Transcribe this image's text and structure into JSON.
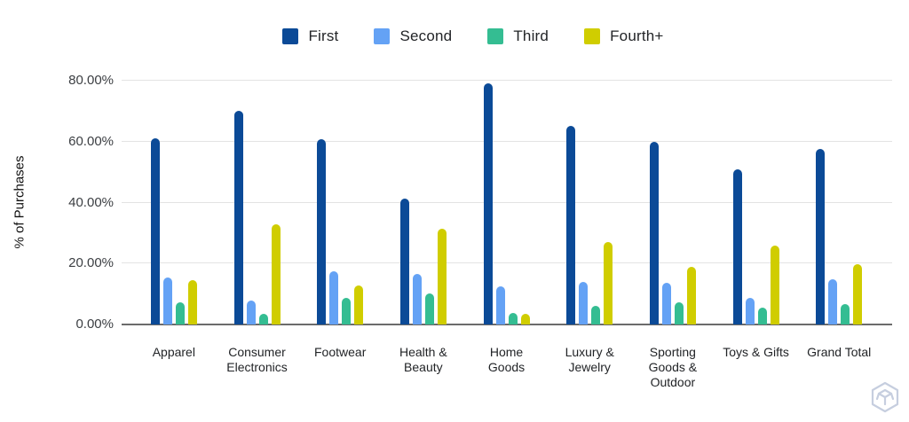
{
  "chart_data": {
    "type": "bar",
    "title": "",
    "xlabel": "",
    "ylabel": "% of Purchases",
    "ylim": [
      0,
      80
    ],
    "grid": true,
    "legend_position": "top-center",
    "y_ticks": [
      "0.00%",
      "20.00%",
      "40.00%",
      "60.00%",
      "80.00%"
    ],
    "categories": [
      "Apparel",
      "Consumer Electronics",
      "Footwear",
      "Health & Beauty",
      "Home Goods",
      "Luxury & Jewelry",
      "Sporting Goods & Outdoor",
      "Toys & Gifts",
      "Grand Total"
    ],
    "series": [
      {
        "name": "First",
        "color": "#0b4a97",
        "values": [
          61.0,
          70.0,
          60.7,
          41.4,
          79.0,
          65.3,
          60.0,
          50.8,
          57.7
        ]
      },
      {
        "name": "Second",
        "color": "#64a2f5",
        "values": [
          15.5,
          8.0,
          17.4,
          16.5,
          12.6,
          14.0,
          13.7,
          8.8,
          14.9
        ]
      },
      {
        "name": "Third",
        "color": "#34bd92",
        "values": [
          7.2,
          3.6,
          8.7,
          10.2,
          3.9,
          6.2,
          7.2,
          5.4,
          6.7
        ]
      },
      {
        "name": "Fourth+",
        "color": "#d0cd00",
        "values": [
          14.6,
          32.9,
          12.7,
          31.5,
          3.5,
          27.1,
          18.9,
          26.0,
          19.8
        ]
      }
    ],
    "axis_colors": {
      "gridline": "#e3e3e3",
      "axis_line": "#6b6b6b",
      "tick_text": "#3b3e42"
    },
    "watermark_icon": "cube-icon"
  }
}
